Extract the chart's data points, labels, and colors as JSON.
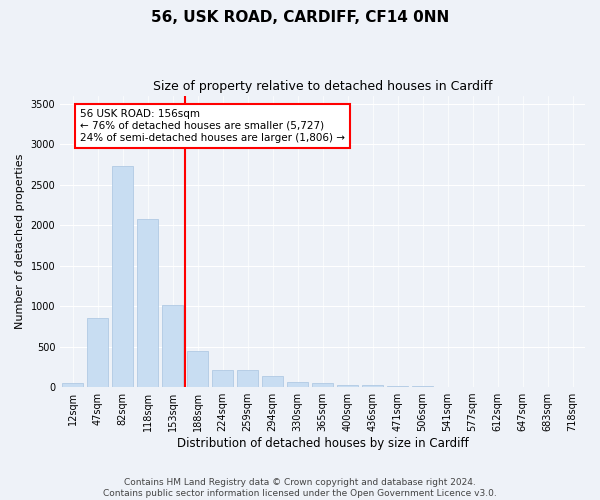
{
  "title": "56, USK ROAD, CARDIFF, CF14 0NN",
  "subtitle": "Size of property relative to detached houses in Cardiff",
  "xlabel": "Distribution of detached houses by size in Cardiff",
  "ylabel": "Number of detached properties",
  "categories": [
    "12sqm",
    "47sqm",
    "82sqm",
    "118sqm",
    "153sqm",
    "188sqm",
    "224sqm",
    "259sqm",
    "294sqm",
    "330sqm",
    "365sqm",
    "400sqm",
    "436sqm",
    "471sqm",
    "506sqm",
    "541sqm",
    "577sqm",
    "612sqm",
    "647sqm",
    "683sqm",
    "718sqm"
  ],
  "values": [
    55,
    850,
    2730,
    2070,
    1010,
    450,
    215,
    210,
    135,
    65,
    55,
    30,
    25,
    15,
    15,
    5,
    5,
    5,
    5,
    5,
    5
  ],
  "bar_color": "#c8ddf2",
  "bar_edge_color": "#a8c4e0",
  "annotation_text": "56 USK ROAD: 156sqm\n← 76% of detached houses are smaller (5,727)\n24% of semi-detached houses are larger (1,806) →",
  "ylim": [
    0,
    3600
  ],
  "yticks": [
    0,
    500,
    1000,
    1500,
    2000,
    2500,
    3000,
    3500
  ],
  "background_color": "#eef2f8",
  "plot_bg_color": "#eef2f8",
  "grid_color": "#ffffff",
  "footer": "Contains HM Land Registry data © Crown copyright and database right 2024.\nContains public sector information licensed under the Open Government Licence v3.0.",
  "title_fontsize": 11,
  "subtitle_fontsize": 9,
  "xlabel_fontsize": 8.5,
  "ylabel_fontsize": 8,
  "tick_fontsize": 7,
  "annotation_fontsize": 7.5,
  "footer_fontsize": 6.5
}
